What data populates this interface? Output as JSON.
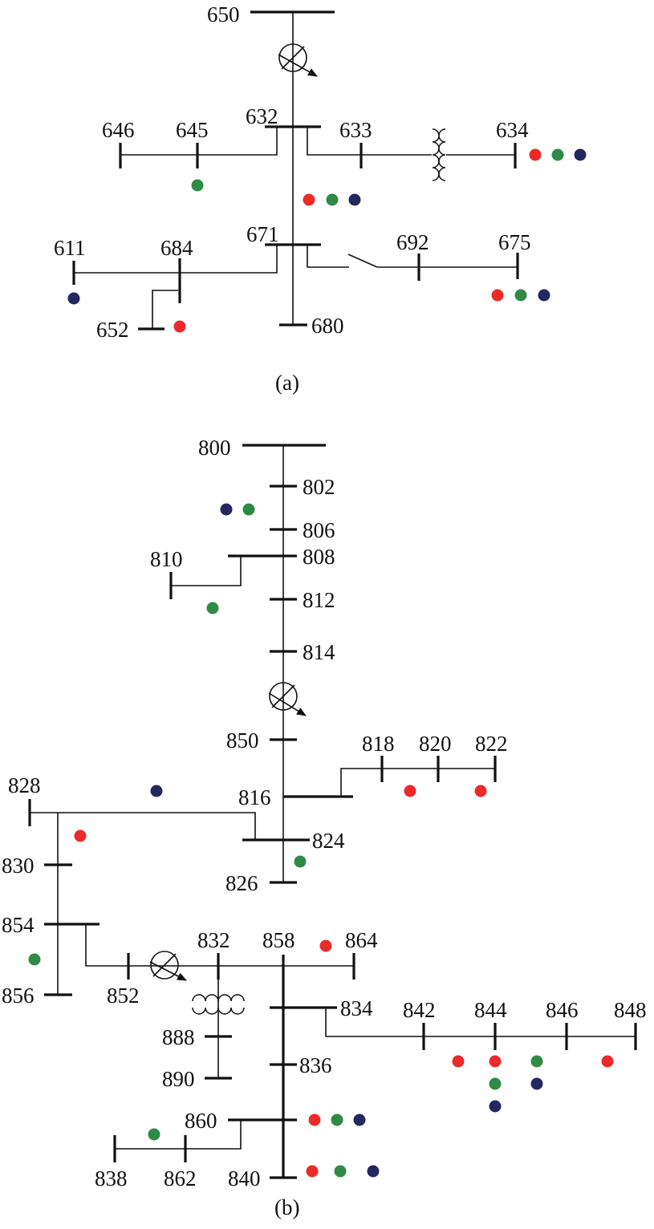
{
  "colors": {
    "red": "#ec2a2a",
    "green": "#2f8a45",
    "blue": "#24285e",
    "line": "#111111"
  },
  "panel_a": {
    "caption": "(a)",
    "nodes": [
      "650",
      "632",
      "633",
      "634",
      "645",
      "646",
      "671",
      "692",
      "675",
      "684",
      "611",
      "652",
      "680"
    ],
    "dots": [
      {
        "at": "645",
        "phases": [
          "green"
        ]
      },
      {
        "at": "634",
        "phases": [
          "red",
          "green",
          "blue"
        ]
      },
      {
        "at": "632-671",
        "phases": [
          "red",
          "green",
          "blue"
        ]
      },
      {
        "at": "675",
        "phases": [
          "red",
          "green",
          "blue"
        ]
      },
      {
        "at": "611",
        "phases": [
          "blue"
        ]
      },
      {
        "at": "652",
        "phases": [
          "red"
        ]
      }
    ]
  },
  "panel_b": {
    "caption": "(b)",
    "nodes": [
      "800",
      "802",
      "806",
      "808",
      "810",
      "812",
      "814",
      "850",
      "816",
      "818",
      "820",
      "822",
      "824",
      "826",
      "828",
      "830",
      "854",
      "856",
      "852",
      "832",
      "858",
      "864",
      "834",
      "842",
      "844",
      "846",
      "848",
      "888",
      "890",
      "836",
      "860",
      "838",
      "862",
      "840"
    ],
    "dots": [
      {
        "at": "802-806",
        "phases": [
          "blue",
          "green"
        ]
      },
      {
        "at": "810",
        "phases": [
          "green"
        ]
      },
      {
        "at": "828",
        "phases": [
          "blue"
        ]
      },
      {
        "at": "820",
        "phases": [
          "red"
        ]
      },
      {
        "at": "822",
        "phases": [
          "red"
        ]
      },
      {
        "at": "830",
        "phases": [
          "red"
        ]
      },
      {
        "at": "824",
        "phases": [
          "green"
        ]
      },
      {
        "at": "856",
        "phases": [
          "green"
        ]
      },
      {
        "at": "864",
        "phases": [
          "red"
        ]
      },
      {
        "at": "842-844",
        "phases": [
          "red"
        ]
      },
      {
        "at": "844",
        "phases": [
          "red",
          "green",
          "blue"
        ]
      },
      {
        "at": "846",
        "phases": [
          "green",
          "blue"
        ]
      },
      {
        "at": "848",
        "phases": [
          "red"
        ]
      },
      {
        "at": "860",
        "phases": [
          "red",
          "green",
          "blue"
        ]
      },
      {
        "at": "838-862",
        "phases": [
          "green"
        ]
      },
      {
        "at": "840",
        "phases": [
          "red",
          "green",
          "blue"
        ]
      }
    ]
  }
}
